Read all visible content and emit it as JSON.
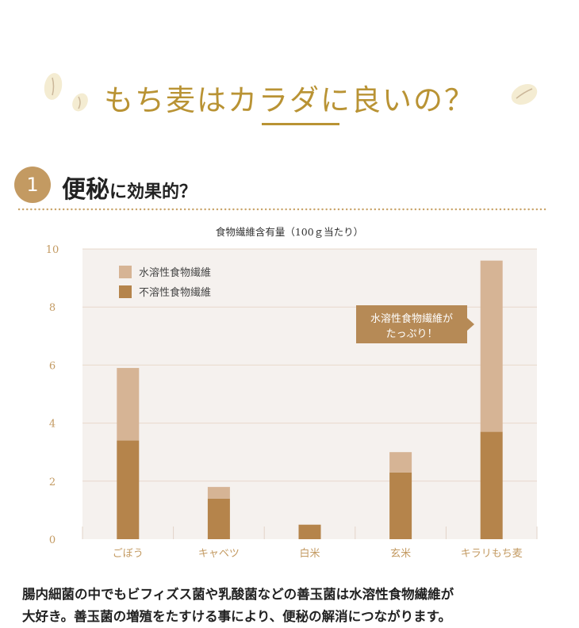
{
  "page": {
    "title": "もち麦はカラダに良いの？",
    "section_number": "1",
    "section_title_big": "便秘",
    "section_title_small": "に効果的？",
    "description_lines": [
      "腸内細菌の中でもビフィズス菌や乳酸菌などの善玉菌は水溶性食物繊維が",
      "大好き。善玉菌の増殖をたすける事により、便秘の解消につながります。"
    ]
  },
  "colors": {
    "accent_gold": "#b99334",
    "soluble": "#d6b495",
    "insoluble": "#b5844b",
    "plot_bg": "#f5f1ee",
    "gridline": "#e8d8cb",
    "tick_text": "#c39a62",
    "callout_bg": "#b68a56"
  },
  "chart_data": {
    "type": "bar",
    "stacked": true,
    "title": "食物繊維含有量（100ｇ当たり）",
    "categories": [
      "ごぼう",
      "キャベツ",
      "白米",
      "玄米",
      "キラリもち麦"
    ],
    "series": [
      {
        "name": "不溶性食物繊維",
        "values": [
          3.4,
          1.4,
          0.5,
          2.3,
          3.7
        ]
      },
      {
        "name": "水溶性食物繊維",
        "values": [
          2.5,
          0.4,
          0.0,
          0.7,
          5.9
        ]
      }
    ],
    "yticks": [
      "10",
      "8",
      "6",
      "4",
      "2",
      "0"
    ],
    "ylim": [
      0,
      10
    ],
    "grid": true,
    "legend_position": "top-left",
    "annotation_lines": [
      "水溶性食物繊維が",
      "たっぷり！"
    ]
  }
}
